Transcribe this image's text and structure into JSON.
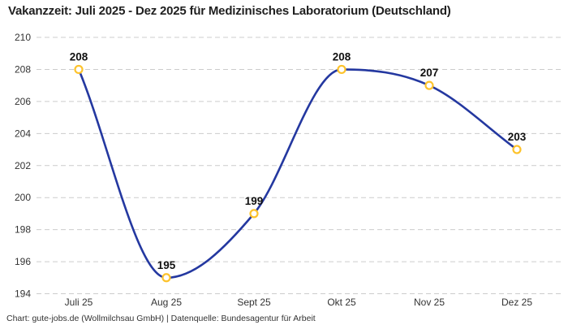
{
  "chart_data": {
    "type": "line",
    "title": "Vakanzzeit: Juli 2025 - Dez 2025 für Medizinisches Laboratorium (Deutschland)",
    "categories": [
      "Juli 25",
      "Aug 25",
      "Sept 25",
      "Okt 25",
      "Nov 25",
      "Dez 25"
    ],
    "series": [
      {
        "name": "Vakanzzeit",
        "values": [
          208,
          195,
          199,
          208,
          207,
          203
        ]
      }
    ],
    "ylim": [
      194,
      210
    ],
    "ytick_step": 2,
    "grid": "horizontal-dashed",
    "legend_position": "none",
    "data_labels": true,
    "line_color": "#2438a0",
    "marker_ring_color": "#fdc32c",
    "marker_fill_color": "#ffffff",
    "gridline_color": "#cccccc"
  },
  "footer": {
    "credit": "Chart: gute-jobs.de (Wollmilchsau GmbH) | Datenquelle: Bundesagentur für Arbeit"
  }
}
